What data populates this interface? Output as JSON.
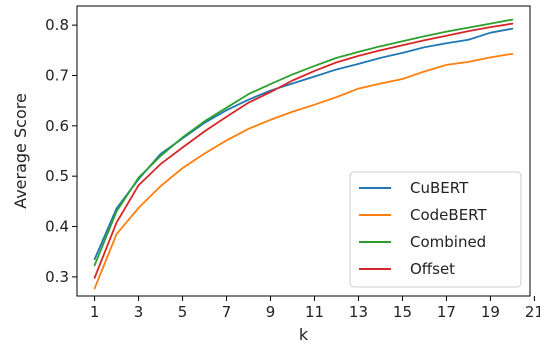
{
  "chart_data": {
    "type": "line",
    "title": "",
    "xlabel": "k",
    "ylabel": "Average Score",
    "xlim": [
      0.2,
      20.8
    ],
    "ylim": [
      0.262,
      0.838
    ],
    "xticks": [
      1,
      3,
      5,
      7,
      9,
      11,
      13,
      15,
      17,
      19,
      21
    ],
    "yticks": [
      0.3,
      0.4,
      0.5,
      0.6,
      0.7,
      0.8
    ],
    "ytick_labels": [
      "0.3",
      "0.4",
      "0.5",
      "0.6",
      "0.7",
      "0.8"
    ],
    "grid": false,
    "legend_position": "bottom-right",
    "x": [
      1,
      2,
      3,
      4,
      5,
      6,
      7,
      8,
      9,
      10,
      11,
      12,
      13,
      14,
      15,
      16,
      17,
      18,
      19,
      20
    ],
    "series": [
      {
        "name": "CuBERT",
        "color": "#1f77b4",
        "values": [
          0.335,
          0.436,
          0.494,
          0.544,
          0.575,
          0.606,
          0.631,
          0.652,
          0.67,
          0.684,
          0.698,
          0.712,
          0.723,
          0.735,
          0.745,
          0.756,
          0.764,
          0.771,
          0.785,
          0.793
        ]
      },
      {
        "name": "CodeBERT",
        "color": "#ff7f0e",
        "values": [
          0.277,
          0.385,
          0.437,
          0.48,
          0.516,
          0.545,
          0.571,
          0.594,
          0.612,
          0.628,
          0.642,
          0.657,
          0.674,
          0.684,
          0.693,
          0.708,
          0.721,
          0.727,
          0.736,
          0.743
        ]
      },
      {
        "name": "Combined",
        "color": "#2ca02c",
        "values": [
          0.323,
          0.43,
          0.497,
          0.54,
          0.577,
          0.609,
          0.636,
          0.663,
          0.683,
          0.702,
          0.719,
          0.735,
          0.747,
          0.758,
          0.768,
          0.778,
          0.787,
          0.795,
          0.803,
          0.811
        ]
      },
      {
        "name": "Offset",
        "color": "#d62728",
        "values": [
          0.298,
          0.408,
          0.482,
          0.524,
          0.557,
          0.589,
          0.618,
          0.646,
          0.667,
          0.69,
          0.709,
          0.726,
          0.739,
          0.75,
          0.76,
          0.77,
          0.779,
          0.788,
          0.796,
          0.803
        ]
      }
    ]
  }
}
